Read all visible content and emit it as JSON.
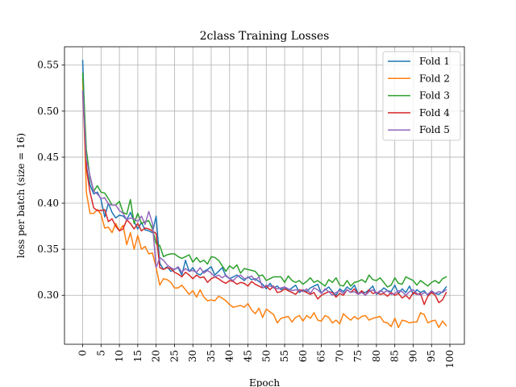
{
  "chart_data": {
    "type": "line",
    "title": "2class Training Losses",
    "xlabel": "Epoch",
    "ylabel": "loss per batch (size = 16)",
    "xlim": [
      -4.95,
      103.95
    ],
    "ylim": [
      0.2468,
      0.5699
    ],
    "xticks": [
      0,
      5,
      10,
      15,
      20,
      25,
      30,
      35,
      40,
      45,
      50,
      55,
      60,
      65,
      70,
      75,
      80,
      85,
      90,
      95,
      100
    ],
    "yticks": [
      0.3,
      0.35,
      0.4,
      0.45,
      0.5,
      0.55
    ],
    "ytick_labels": [
      "0.30",
      "0.35",
      "0.40",
      "0.45",
      "0.50",
      "0.55"
    ],
    "grid": true,
    "legend_position": "top-right",
    "series": [
      {
        "name": "Fold 1",
        "color": "#1f77b4",
        "values": [
          0.555,
          0.44,
          0.42,
          0.41,
          0.412,
          0.404,
          0.385,
          0.4,
          0.39,
          0.384,
          0.387,
          0.386,
          0.382,
          0.39,
          0.38,
          0.372,
          0.379,
          0.371,
          0.37,
          0.368,
          0.386,
          0.335,
          0.328,
          0.331,
          0.326,
          0.328,
          0.33,
          0.322,
          0.338,
          0.326,
          0.33,
          0.324,
          0.322,
          0.326,
          0.328,
          0.331,
          0.322,
          0.326,
          0.33,
          0.321,
          0.318,
          0.32,
          0.322,
          0.319,
          0.316,
          0.32,
          0.317,
          0.318,
          0.315,
          0.312,
          0.307,
          0.313,
          0.308,
          0.31,
          0.306,
          0.309,
          0.305,
          0.308,
          0.311,
          0.303,
          0.306,
          0.304,
          0.308,
          0.31,
          0.312,
          0.302,
          0.306,
          0.309,
          0.304,
          0.3,
          0.307,
          0.304,
          0.309,
          0.306,
          0.311,
          0.302,
          0.304,
          0.303,
          0.306,
          0.31,
          0.301,
          0.304,
          0.308,
          0.305,
          0.304,
          0.311,
          0.302,
          0.307,
          0.303,
          0.31,
          0.301,
          0.306,
          0.303,
          0.305,
          0.3,
          0.304,
          0.302,
          0.301,
          0.304,
          0.309
        ]
      },
      {
        "name": "Fold 2",
        "color": "#ff7f0e",
        "values": [
          0.535,
          0.412,
          0.389,
          0.389,
          0.393,
          0.388,
          0.373,
          0.374,
          0.368,
          0.378,
          0.37,
          0.376,
          0.355,
          0.368,
          0.35,
          0.365,
          0.35,
          0.353,
          0.345,
          0.346,
          0.33,
          0.311,
          0.318,
          0.317,
          0.314,
          0.308,
          0.308,
          0.311,
          0.306,
          0.301,
          0.305,
          0.298,
          0.306,
          0.298,
          0.294,
          0.295,
          0.294,
          0.299,
          0.297,
          0.294,
          0.29,
          0.287,
          0.288,
          0.289,
          0.287,
          0.291,
          0.284,
          0.28,
          0.286,
          0.276,
          0.285,
          0.282,
          0.279,
          0.27,
          0.275,
          0.276,
          0.277,
          0.271,
          0.276,
          0.278,
          0.272,
          0.278,
          0.275,
          0.281,
          0.273,
          0.272,
          0.278,
          0.276,
          0.27,
          0.273,
          0.269,
          0.28,
          0.276,
          0.273,
          0.277,
          0.274,
          0.277,
          0.278,
          0.273,
          0.275,
          0.276,
          0.277,
          0.271,
          0.27,
          0.266,
          0.275,
          0.265,
          0.273,
          0.272,
          0.27,
          0.271,
          0.271,
          0.281,
          0.279,
          0.27,
          0.272,
          0.273,
          0.265,
          0.272,
          0.267
        ]
      },
      {
        "name": "Fold 3",
        "color": "#2ca02c",
        "values": [
          0.541,
          0.458,
          0.428,
          0.413,
          0.419,
          0.412,
          0.411,
          0.405,
          0.398,
          0.398,
          0.402,
          0.39,
          0.388,
          0.404,
          0.378,
          0.389,
          0.378,
          0.38,
          0.381,
          0.372,
          0.356,
          0.354,
          0.342,
          0.344,
          0.345,
          0.345,
          0.342,
          0.34,
          0.342,
          0.344,
          0.336,
          0.341,
          0.336,
          0.338,
          0.334,
          0.342,
          0.341,
          0.338,
          0.332,
          0.326,
          0.332,
          0.329,
          0.333,
          0.324,
          0.329,
          0.328,
          0.327,
          0.326,
          0.321,
          0.322,
          0.316,
          0.318,
          0.32,
          0.32,
          0.32,
          0.314,
          0.321,
          0.316,
          0.314,
          0.316,
          0.312,
          0.315,
          0.319,
          0.314,
          0.316,
          0.313,
          0.31,
          0.317,
          0.314,
          0.319,
          0.311,
          0.31,
          0.316,
          0.31,
          0.314,
          0.315,
          0.317,
          0.314,
          0.322,
          0.317,
          0.316,
          0.319,
          0.314,
          0.309,
          0.311,
          0.319,
          0.313,
          0.312,
          0.32,
          0.318,
          0.316,
          0.311,
          0.316,
          0.313,
          0.31,
          0.314,
          0.316,
          0.313,
          0.318,
          0.32
        ]
      },
      {
        "name": "Fold 4",
        "color": "#d62728",
        "values": [
          0.52,
          0.438,
          0.412,
          0.395,
          0.392,
          0.392,
          0.393,
          0.38,
          0.383,
          0.375,
          0.37,
          0.372,
          0.382,
          0.378,
          0.372,
          0.378,
          0.37,
          0.373,
          0.372,
          0.37,
          0.367,
          0.33,
          0.328,
          0.33,
          0.329,
          0.325,
          0.323,
          0.32,
          0.325,
          0.322,
          0.318,
          0.322,
          0.319,
          0.32,
          0.314,
          0.318,
          0.32,
          0.318,
          0.315,
          0.313,
          0.316,
          0.315,
          0.312,
          0.314,
          0.313,
          0.31,
          0.315,
          0.312,
          0.31,
          0.308,
          0.31,
          0.306,
          0.31,
          0.303,
          0.304,
          0.307,
          0.305,
          0.303,
          0.301,
          0.306,
          0.305,
          0.303,
          0.301,
          0.303,
          0.296,
          0.3,
          0.302,
          0.304,
          0.303,
          0.298,
          0.302,
          0.3,
          0.306,
          0.303,
          0.307,
          0.301,
          0.305,
          0.3,
          0.306,
          0.302,
          0.303,
          0.301,
          0.302,
          0.299,
          0.303,
          0.3,
          0.302,
          0.297,
          0.3,
          0.296,
          0.303,
          0.301,
          0.302,
          0.29,
          0.299,
          0.303,
          0.3,
          0.292,
          0.295,
          0.303
        ]
      },
      {
        "name": "Fold 5",
        "color": "#9467bd",
        "values": [
          0.522,
          0.447,
          0.43,
          0.413,
          0.41,
          0.405,
          0.406,
          0.399,
          0.398,
          0.398,
          0.392,
          0.389,
          0.382,
          0.384,
          0.383,
          0.38,
          0.386,
          0.377,
          0.391,
          0.378,
          0.33,
          0.341,
          0.338,
          0.333,
          0.33,
          0.328,
          0.331,
          0.325,
          0.329,
          0.326,
          0.327,
          0.325,
          0.33,
          0.324,
          0.327,
          0.324,
          0.32,
          0.322,
          0.319,
          0.322,
          0.318,
          0.316,
          0.32,
          0.322,
          0.318,
          0.319,
          0.321,
          0.316,
          0.32,
          0.308,
          0.311,
          0.31,
          0.309,
          0.307,
          0.308,
          0.309,
          0.307,
          0.305,
          0.306,
          0.305,
          0.304,
          0.307,
          0.302,
          0.308,
          0.306,
          0.302,
          0.307,
          0.304,
          0.3,
          0.303,
          0.305,
          0.302,
          0.306,
          0.303,
          0.304,
          0.301,
          0.303,
          0.3,
          0.304,
          0.306,
          0.302,
          0.305,
          0.303,
          0.305,
          0.301,
          0.302,
          0.305,
          0.304,
          0.3,
          0.304,
          0.306,
          0.302,
          0.3,
          0.303,
          0.301,
          0.305,
          0.302,
          0.304,
          0.303,
          0.306
        ]
      }
    ]
  }
}
